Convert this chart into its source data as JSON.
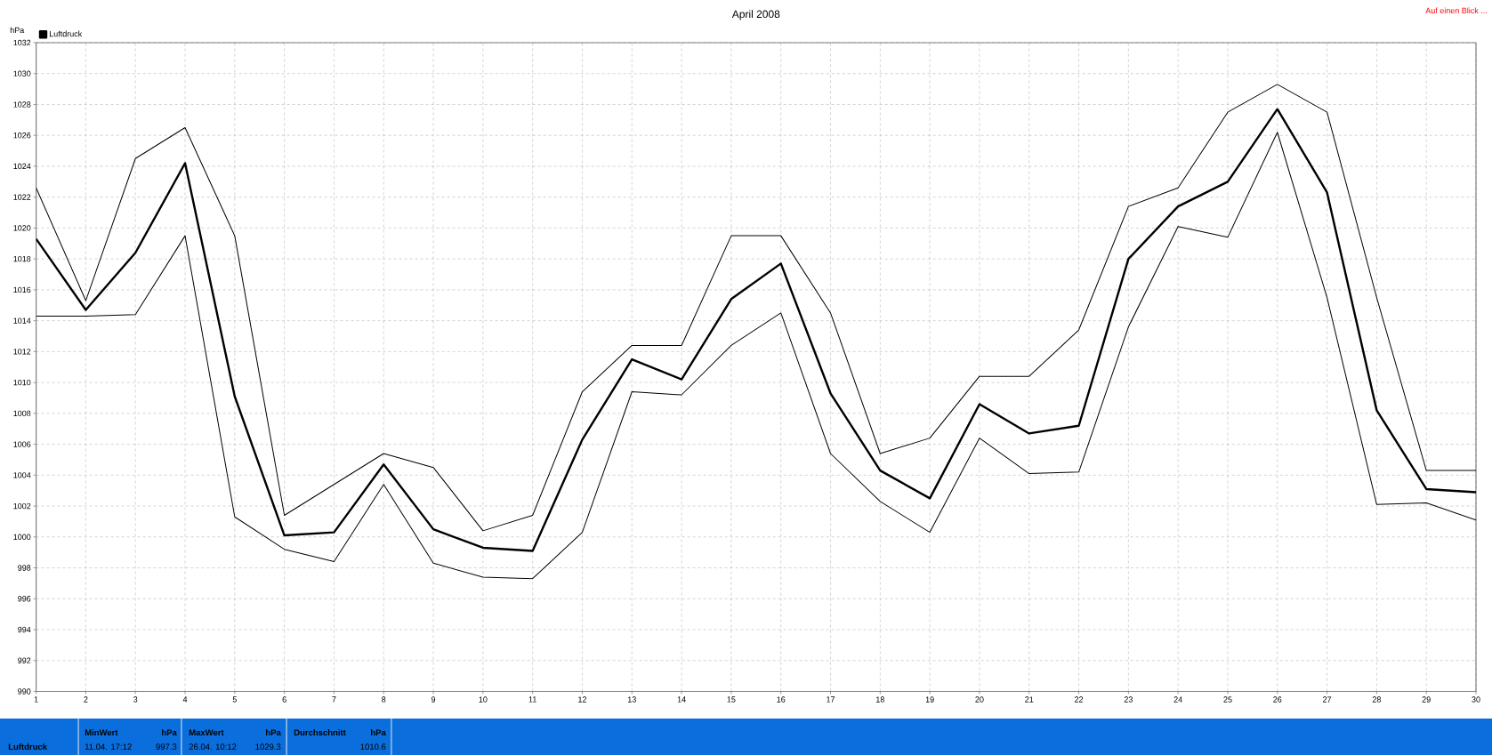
{
  "chart_data": {
    "type": "line",
    "title": "April 2008",
    "ylabel": "hPa",
    "x": [
      1,
      2,
      3,
      4,
      5,
      6,
      7,
      8,
      9,
      10,
      11,
      12,
      13,
      14,
      15,
      16,
      17,
      18,
      19,
      20,
      21,
      22,
      23,
      24,
      25,
      26,
      27,
      28,
      29,
      30
    ],
    "series": [
      {
        "name": "Luftdruck",
        "color": "#000000",
        "values": [
          1019.3,
          1014.7,
          1018.4,
          1024.2,
          1009.1,
          1000.1,
          1000.3,
          1004.7,
          1000.5,
          999.3,
          999.1,
          1006.3,
          1011.5,
          1010.2,
          1015.4,
          1017.7,
          1009.3,
          1004.3,
          1002.5,
          1008.6,
          1006.7,
          1007.2,
          1018.0,
          1021.4,
          1023.0,
          1027.7,
          1022.3,
          1008.2,
          1003.1,
          1002.9
        ]
      },
      {
        "color": "#000000",
        "values": [
          1022.6,
          1015.3,
          1024.5,
          1026.5,
          1019.5,
          1001.4,
          1003.4,
          1005.4,
          1004.5,
          1000.4,
          1001.4,
          1009.4,
          1012.4,
          1012.4,
          1019.5,
          1019.5,
          1014.5,
          1005.4,
          1006.4,
          1010.4,
          1010.4,
          1013.4,
          1021.4,
          1022.6,
          1027.5,
          1029.3,
          1027.5,
          1015.5,
          1004.3,
          1004.3
        ]
      },
      {
        "color": "#000000",
        "values": [
          1014.3,
          1014.3,
          1014.4,
          1019.5,
          1001.3,
          999.2,
          998.4,
          1003.4,
          998.3,
          997.4,
          997.3,
          1000.3,
          1009.4,
          1009.2,
          1012.4,
          1014.5,
          1005.4,
          1002.3,
          1000.3,
          1006.4,
          1004.1,
          1004.2,
          1013.6,
          1020.1,
          1019.4,
          1026.2,
          1015.5,
          1002.1,
          1002.2,
          1001.1
        ]
      }
    ],
    "xlim": [
      1,
      30
    ],
    "xticks": [
      1,
      2,
      3,
      4,
      5,
      6,
      7,
      8,
      9,
      10,
      11,
      12,
      13,
      14,
      15,
      16,
      17,
      18,
      19,
      20,
      21,
      22,
      23,
      24,
      25,
      26,
      27,
      28,
      29,
      30
    ],
    "ylim": [
      990,
      1032
    ],
    "yticks": [
      990,
      992,
      994,
      996,
      998,
      1000,
      1002,
      1004,
      1006,
      1008,
      1010,
      1012,
      1014,
      1016,
      1018,
      1020,
      1022,
      1024,
      1026,
      1028,
      1030,
      1032
    ],
    "grid": true,
    "legend": "top left",
    "marker": "none",
    "line_style": "solid",
    "annotations": [
      "Luftdruck",
      "MinWert",
      "hPa",
      "11.04.  17:12",
      "997.3",
      "MaxWert",
      "hPa",
      "26.04.  10:12",
      "1029.3",
      "Durchschnitt",
      "hPa",
      "1010.6",
      "Auf einen Blick ..."
    ]
  }
}
